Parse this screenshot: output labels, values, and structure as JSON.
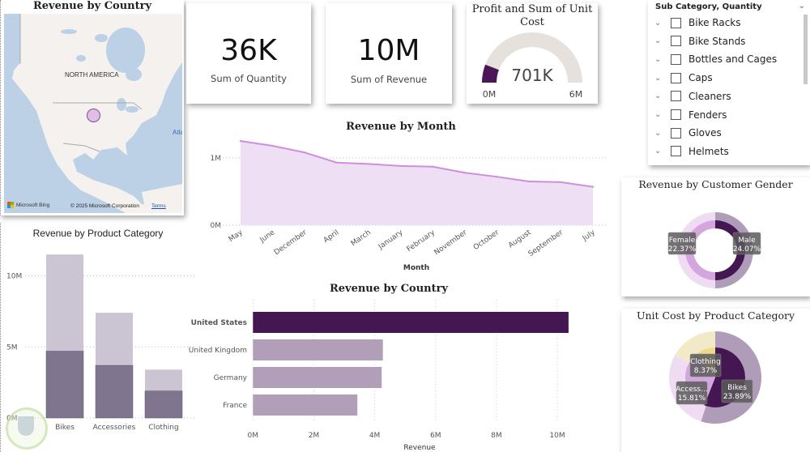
{
  "map": {
    "title": "Revenue by Country",
    "region_label": "NORTH AMERICA",
    "ocean_label": "Atla",
    "bing_label": "Microsoft Bing",
    "copyright": "© 2025 Microsoft Corporation",
    "terms_link": "Terms",
    "bubble_color": "#e0bfe6"
  },
  "kpis": [
    {
      "value": "36K",
      "label": "Sum of Quantity"
    },
    {
      "value": "10M",
      "label": "Sum of Revenue"
    }
  ],
  "gauge": {
    "title_line1": "Profit and Sum of Unit",
    "title_line2": "Cost",
    "value_label": "701K",
    "value": 701000,
    "min": 0,
    "max": 6000000,
    "min_label": "0M",
    "max_label": "6M",
    "fill_color": "#4a1657",
    "track_color": "#e6e1dc"
  },
  "slicer": {
    "header": "Sub Category, Quantity",
    "items": [
      "Bike Racks",
      "Bike Stands",
      "Bottles and Cages",
      "Caps",
      "Cleaners",
      "Fenders",
      "Gloves",
      "Helmets"
    ]
  },
  "chart_data": [
    {
      "id": "revenue-by-month",
      "type": "area",
      "title": "Revenue by Month",
      "xlabel": "Month",
      "ylabel": "",
      "categories": [
        "May",
        "June",
        "December",
        "April",
        "March",
        "January",
        "February",
        "November",
        "October",
        "August",
        "September",
        "July"
      ],
      "values": [
        1250000,
        1180000,
        1080000,
        930000,
        910000,
        880000,
        870000,
        780000,
        720000,
        650000,
        640000,
        570000
      ],
      "ylim": [
        0,
        1300000
      ],
      "yticks": [
        {
          "value": 0,
          "label": "0M"
        },
        {
          "value": 1000000,
          "label": "1M"
        }
      ],
      "grid": true,
      "line_color": "#d08fdc",
      "fill_color": "#efdff4"
    },
    {
      "id": "revenue-by-product-category",
      "type": "bar",
      "title": "Revenue by Product Category",
      "categories": [
        "Bikes",
        "Accessories",
        "Clothing"
      ],
      "series": [
        {
          "name": "inner",
          "values": [
            4700000,
            3700000,
            1900000
          ],
          "color": "#80758f"
        },
        {
          "name": "total",
          "values": [
            11500000,
            7400000,
            3400000
          ],
          "color": "#cbc5d3"
        }
      ],
      "ylim": [
        0,
        12000000
      ],
      "yticks": [
        {
          "value": 0,
          "label": "0M"
        },
        {
          "value": 5000000,
          "label": "5M"
        },
        {
          "value": 10000000,
          "label": "10M"
        }
      ],
      "grid": true
    },
    {
      "id": "revenue-by-country-bar",
      "type": "bar",
      "orientation": "horizontal",
      "title": "Revenue by Country",
      "xlabel": "Revenue",
      "categories": [
        "United States",
        "United Kingdom",
        "Germany",
        "France"
      ],
      "values": [
        10370000,
        4270000,
        4230000,
        3430000
      ],
      "highlight": "United States",
      "highlight_color": "#441752",
      "color": "#b19fba",
      "xlim": [
        0,
        10000000
      ],
      "xticks": [
        {
          "value": 0,
          "label": "0M"
        },
        {
          "value": 2000000,
          "label": "2M"
        },
        {
          "value": 4000000,
          "label": "4M"
        },
        {
          "value": 6000000,
          "label": "6M"
        },
        {
          "value": 8000000,
          "label": "8M"
        },
        {
          "value": 10000000,
          "label": "10M"
        }
      ],
      "grid": true
    },
    {
      "id": "revenue-by-customer-gender",
      "type": "pie",
      "title": "Revenue by Customer Gender",
      "rings": [
        {
          "name": "outer",
          "slices": [
            {
              "label": "Male",
              "value": 50,
              "color": "#ae9cb9"
            },
            {
              "label": "Female",
              "value": 50,
              "color": "#efdcf3"
            }
          ]
        },
        {
          "name": "inner",
          "slices": [
            {
              "label": "Male",
              "value": 50,
              "color": "#441752"
            },
            {
              "label": "Female",
              "value": 50,
              "color": "#d4a6de"
            }
          ]
        }
      ],
      "data_labels": [
        {
          "label": "Female",
          "percent": "22.37%"
        },
        {
          "label": "Male",
          "percent": "24.07%"
        }
      ]
    },
    {
      "id": "unit-cost-by-product-category",
      "type": "pie",
      "title": "Unit Cost by Product Category",
      "rings": [
        {
          "name": "outer",
          "slices": [
            {
              "label": "Bikes",
              "value": 55,
              "color": "#ae9cb9"
            },
            {
              "label": "Accessories",
              "value": 28,
              "color": "#efdcf3"
            },
            {
              "label": "Clothing",
              "value": 17,
              "color": "#f2e9c8"
            }
          ]
        },
        {
          "name": "inner",
          "slices": [
            {
              "label": "Bikes",
              "value": 56,
              "color": "#441752"
            },
            {
              "label": "Accessories",
              "value": 33,
              "color": "#d4a6de"
            },
            {
              "label": "Clothing",
              "value": 11,
              "color": "#ecd98b"
            }
          ]
        }
      ],
      "data_labels": [
        {
          "label": "Clothing",
          "percent": "8.37%"
        },
        {
          "label": "Access...",
          "percent": "15.81%"
        },
        {
          "label": "Bikes",
          "percent": "23.89%"
        }
      ]
    }
  ]
}
